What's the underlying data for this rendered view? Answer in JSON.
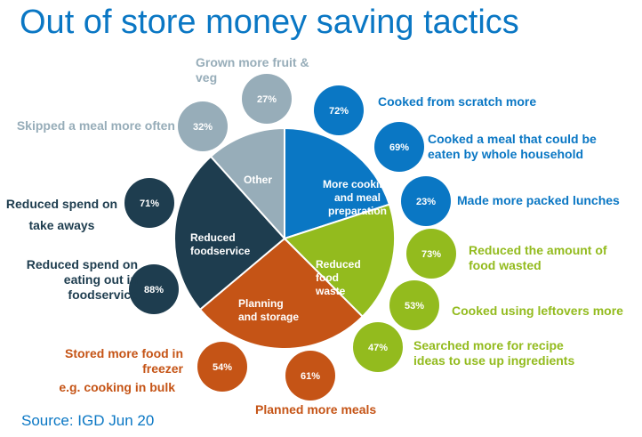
{
  "title": "Out of store money saving tactics",
  "source": "Source: IGD Jun 20",
  "colors": {
    "blue": "#0a77c4",
    "green": "#93bb1e",
    "orange": "#c55416",
    "navy": "#1e3d4f",
    "grey": "#97adb9",
    "title": "#0a77c4"
  },
  "chart_data": {
    "type": "pie",
    "categories": [
      {
        "name": "More cooking and meal preparation",
        "color": "#0a77c4",
        "tactics": [
          {
            "label": "Cooked from scratch more",
            "value": 72
          },
          {
            "label": "Cooked a meal that could be eaten by whole household",
            "value": 69
          },
          {
            "label": "Made more packed lunches",
            "value": 23
          }
        ]
      },
      {
        "name": "Reduced food waste",
        "color": "#93bb1e",
        "tactics": [
          {
            "label": "Reduced the amount of food wasted",
            "value": 73
          },
          {
            "label": "Cooked using leftovers more",
            "value": 53
          },
          {
            "label": "Searched more for recipe ideas to use up ingredients",
            "value": 47
          }
        ]
      },
      {
        "name": "Planning and storage",
        "color": "#c55416",
        "tactics": [
          {
            "label": "Planned more meals",
            "value": 61
          },
          {
            "label": "Stored more food in freezer",
            "sublabel": "e.g. cooking in bulk",
            "value": 54
          }
        ]
      },
      {
        "name": "Reduced foodservice",
        "color": "#1e3d4f",
        "tactics": [
          {
            "label": "Reduced spend on eating out in foodservice",
            "value": 88
          },
          {
            "label": "Reduced spend on take aways",
            "value": 71
          }
        ]
      },
      {
        "name": "Other",
        "color": "#97adb9",
        "tactics": [
          {
            "label": "Skipped a meal more often",
            "value": 32
          },
          {
            "label": "Grown more fruit & veg",
            "value": 27
          }
        ]
      }
    ]
  }
}
